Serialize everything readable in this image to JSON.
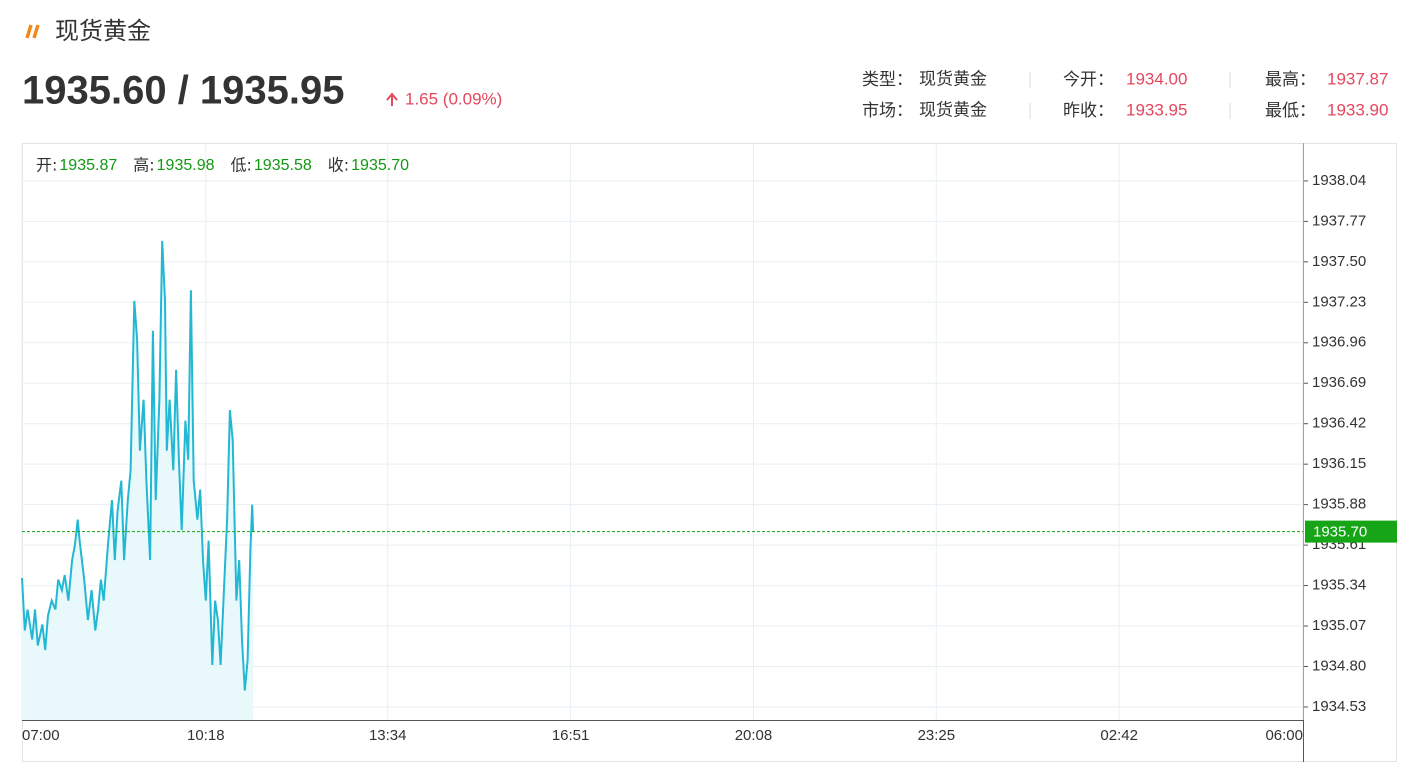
{
  "header": {
    "title": "现货黄金",
    "price": "1935.60 / 1935.95",
    "change": "1.65 (0.09%)",
    "info": [
      [
        {
          "label": "类型：",
          "value": "现货黄金"
        },
        {
          "label": "今开：",
          "value": "1934.00"
        },
        {
          "label": "最高：",
          "value": "1937.87"
        }
      ],
      [
        {
          "label": "市场：",
          "value": "现货黄金"
        },
        {
          "label": "昨收：",
          "value": "1933.95"
        },
        {
          "label": "最低：",
          "value": "1933.90"
        }
      ]
    ]
  },
  "chart_data": {
    "type": "line",
    "ohlc": [
      {
        "label": "开:",
        "value": "1935.87"
      },
      {
        "label": "高:",
        "value": "1935.98"
      },
      {
        "label": "低:",
        "value": "1935.58"
      },
      {
        "label": "收:",
        "value": "1935.70"
      }
    ],
    "x": [
      "07:00",
      "07:03",
      "07:06",
      "07:11",
      "07:14",
      "07:17",
      "07:22",
      "07:25",
      "07:28",
      "07:32",
      "07:36",
      "07:39",
      "07:43",
      "07:46",
      "07:50",
      "07:54",
      "07:57",
      "08:00",
      "08:02",
      "08:07",
      "08:11",
      "08:15",
      "08:19",
      "08:22",
      "08:25",
      "08:28",
      "08:33",
      "08:37",
      "08:40",
      "08:43",
      "08:47",
      "08:50",
      "08:54",
      "08:57",
      "09:01",
      "09:04",
      "09:07",
      "09:11",
      "09:14",
      "09:18",
      "09:21",
      "09:24",
      "09:28",
      "09:31",
      "09:34",
      "09:36",
      "09:39",
      "09:43",
      "09:46",
      "09:49",
      "09:52",
      "09:56",
      "09:59",
      "10:02",
      "10:05",
      "10:09",
      "10:12",
      "10:15",
      "10:18",
      "10:21",
      "10:25",
      "10:28",
      "10:31",
      "10:34",
      "10:38",
      "10:41",
      "10:44",
      "10:47",
      "10:51",
      "10:54",
      "10:57",
      "11:00",
      "11:03",
      "11:06",
      "11:08",
      "11:09"
    ],
    "series": [
      {
        "color": "#22b8d3",
        "fill": "#e9f8fa",
        "values": [
          1935.39,
          1935.04,
          1935.18,
          1934.98,
          1935.18,
          1934.94,
          1935.08,
          1934.91,
          1935.14,
          1935.24,
          1935.18,
          1935.38,
          1935.31,
          1935.41,
          1935.24,
          1935.51,
          1935.61,
          1935.78,
          1935.64,
          1935.38,
          1935.11,
          1935.31,
          1935.04,
          1935.18,
          1935.38,
          1935.24,
          1935.64,
          1935.91,
          1935.51,
          1935.84,
          1936.04,
          1935.51,
          1935.91,
          1936.11,
          1937.24,
          1936.98,
          1936.24,
          1936.58,
          1936.04,
          1935.51,
          1937.04,
          1935.91,
          1936.58,
          1937.64,
          1937.24,
          1936.24,
          1936.58,
          1936.11,
          1936.78,
          1936.18,
          1935.71,
          1936.44,
          1936.18,
          1937.31,
          1936.04,
          1935.78,
          1935.98,
          1935.51,
          1935.24,
          1935.64,
          1934.81,
          1935.24,
          1935.11,
          1934.81,
          1935.38,
          1935.78,
          1936.51,
          1936.31,
          1935.24,
          1935.51,
          1934.98,
          1934.64,
          1934.84,
          1935.58,
          1935.88,
          1935.7
        ]
      }
    ],
    "last": {
      "value": 1935.7,
      "label": "1935.70",
      "color": "#16a516"
    },
    "xlim": [
      "07:00",
      "06:00"
    ],
    "xticks": [
      "07:00",
      "10:18",
      "13:34",
      "16:51",
      "20:08",
      "23:25",
      "02:42",
      "06:00"
    ],
    "ylim": [
      1934.443,
      1938.293
    ],
    "yticks": [
      1938.04,
      1937.77,
      {
        "value": 1937.5,
        "label": "1937.50"
      },
      1937.23,
      1936.96,
      1936.69,
      1936.42,
      1936.15,
      1935.88,
      1935.61,
      1935.34,
      1935.07,
      {
        "value": 1934.8,
        "label": "1934.80"
      },
      1934.53
    ],
    "grid": true
  }
}
